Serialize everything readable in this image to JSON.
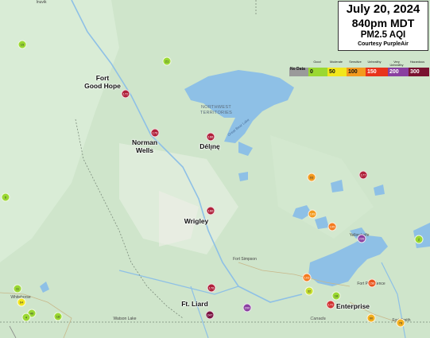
{
  "title": {
    "date": "July 20, 2024",
    "time": "840pm MDT",
    "metric": "PM2.5 AQI",
    "credit": "Courtesy PurpleAir"
  },
  "legend": {
    "nodata": "No Data",
    "categories": [
      "Good",
      "Moderate",
      "Sensitive",
      "Unhealthy",
      "Very Unhealthy",
      "Hazardous"
    ],
    "levels": [
      {
        "value": "0",
        "color": "#9ad832",
        "text_color": "#111"
      },
      {
        "value": "50",
        "color": "#f2e61c",
        "text_color": "#111"
      },
      {
        "value": "100",
        "color": "#f39a1e",
        "text_color": "#111"
      },
      {
        "value": "150",
        "color": "#e8341c",
        "text_color": "#fff"
      },
      {
        "value": "200",
        "color": "#8a3fa0",
        "text_color": "#fff"
      },
      {
        "value": "300",
        "color": "#7a1230",
        "text_color": "#fff"
      }
    ]
  },
  "cities": {
    "fort_good_hope": [
      "Fort",
      "Good Hope"
    ],
    "norman_wells": [
      "Norman",
      "Wells"
    ],
    "deline": "Délı̨nę",
    "wrigley": "Wrigley",
    "ft_liard": "Ft. Liard",
    "enterprise": "Enterprise"
  },
  "region_label": [
    "NORTHWEST",
    "TERRITORIES"
  ],
  "lake_label": "Great Bear Lake",
  "small_places": {
    "fort_simpson": "Fort Simpson",
    "fort_providence": "Fort Providence",
    "watson_lake": "Watson Lake",
    "whitehorse": "Whitehorse",
    "yellowknife": "Yellowknife",
    "fort_smith": "Fort Smith",
    "top_left": "Inuvik"
  },
  "country_label": "Canada",
  "sensors": [
    {
      "value": "15",
      "color": "#9ad832"
    },
    {
      "value": "21",
      "color": "#9ad832"
    },
    {
      "value": "172",
      "color": "#b0203a"
    },
    {
      "value": "176",
      "color": "#b0203a"
    },
    {
      "value": "166",
      "color": "#b0203a"
    },
    {
      "value": "93",
      "color": "#f39a1e"
    },
    {
      "value": "177",
      "color": "#b0203a"
    },
    {
      "value": "6",
      "color": "#9ad832"
    },
    {
      "value": "160",
      "color": "#b0203a"
    },
    {
      "value": "109",
      "color": "#f39a1e"
    },
    {
      "value": "105",
      "color": "#f37a1e"
    },
    {
      "value": "226",
      "color": "#8a3fa0"
    },
    {
      "value": "2",
      "color": "#9ad832"
    },
    {
      "value": "11",
      "color": "#9ad832"
    },
    {
      "value": "64",
      "color": "#f2e61c"
    },
    {
      "value": "40",
      "color": "#9ad832"
    },
    {
      "value": "18",
      "color": "#9ad832"
    },
    {
      "value": "4",
      "color": "#9ad832"
    },
    {
      "value": "176",
      "color": "#b0203a"
    },
    {
      "value": "247",
      "color": "#7a1240"
    },
    {
      "value": "200",
      "color": "#8a3fa0"
    },
    {
      "value": "103",
      "color": "#f37a1e"
    },
    {
      "value": "32",
      "color": "#c8e030"
    },
    {
      "value": "18",
      "color": "#9ad832"
    },
    {
      "value": "172",
      "color": "#d03030"
    },
    {
      "value": "156",
      "color": "#e8541c"
    },
    {
      "value": "90",
      "color": "#f3b01e"
    },
    {
      "value": "78",
      "color": "#f3b01e"
    }
  ]
}
